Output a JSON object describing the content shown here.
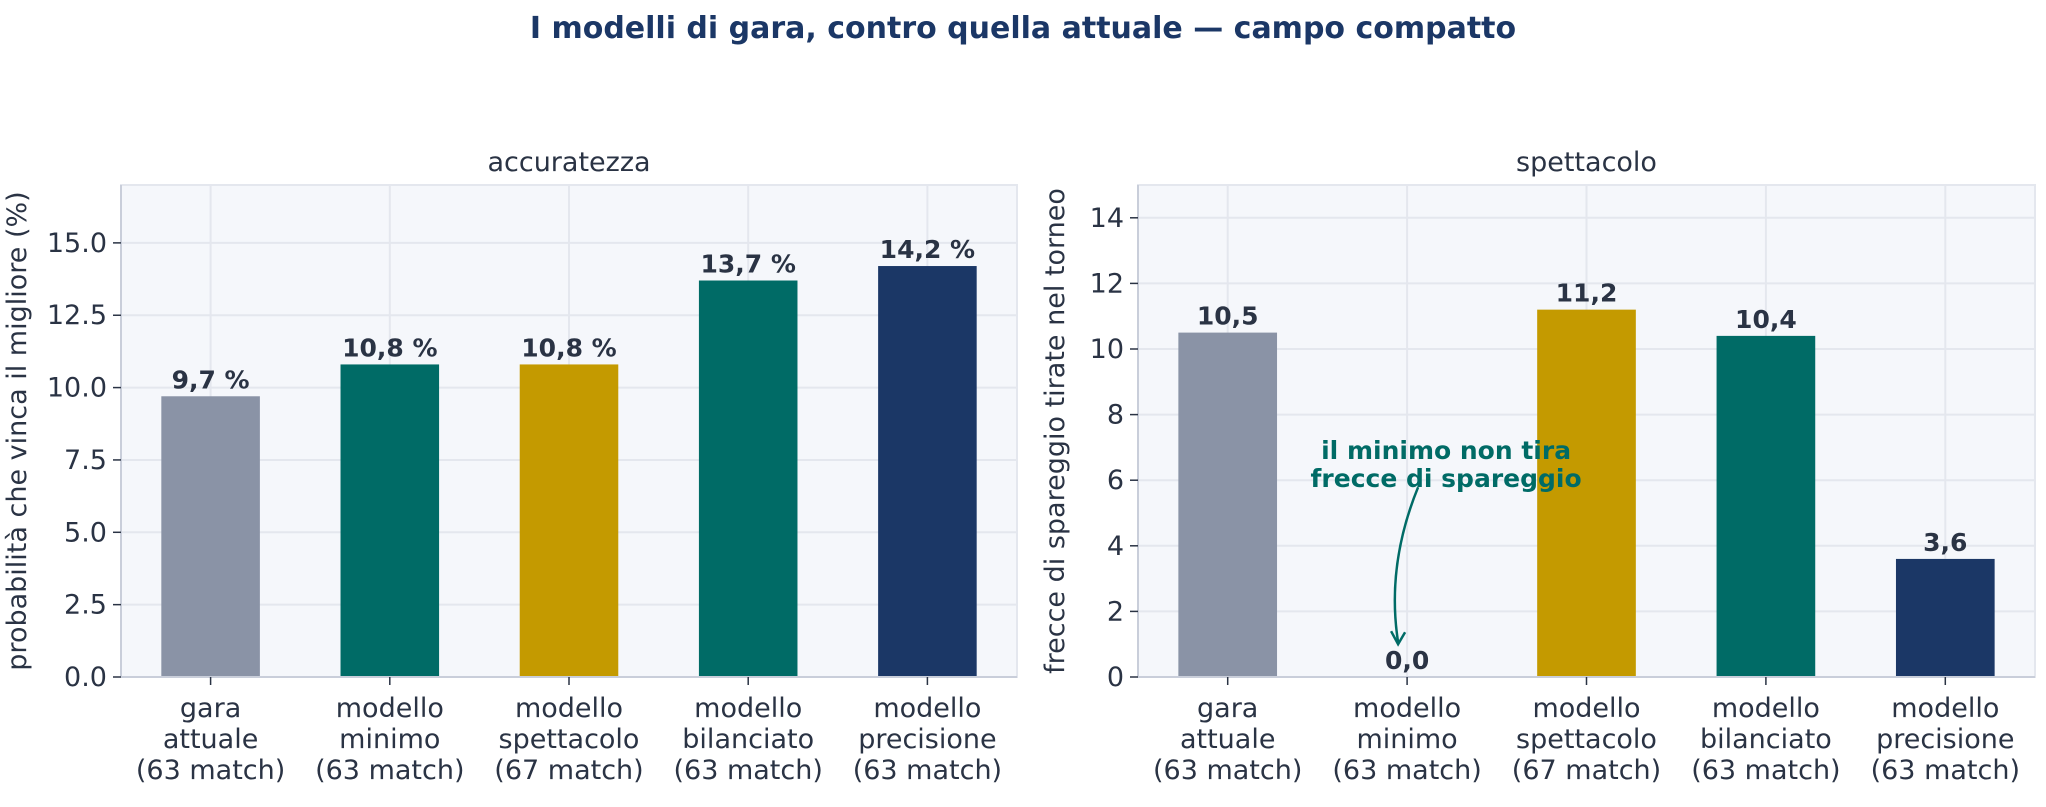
{
  "figure_title": "I modelli di gara, contro quella attuale — campo compatto",
  "colors": {
    "title": "#1b3766",
    "text": "#2a3344",
    "plot_bg": "#f5f7fb",
    "grid": "#e4e7ee",
    "annotation": "#006b66"
  },
  "chart_data": [
    {
      "type": "bar",
      "title": "accuratezza",
      "xlabel": "",
      "ylabel": "probabilità che vinca il migliore (%)",
      "categories": [
        [
          "gara",
          "attuale",
          "(63 match)"
        ],
        [
          "modello",
          "minimo",
          "(63 match)"
        ],
        [
          "modello",
          "spettacolo",
          "(67 match)"
        ],
        [
          "modello",
          "bilanciato",
          "(63 match)"
        ],
        [
          "modello",
          "precisione",
          "(63 match)"
        ]
      ],
      "values": [
        9.7,
        10.8,
        10.8,
        13.7,
        14.2
      ],
      "data_labels": [
        "9,7 %",
        "10,8 %",
        "10,8 %",
        "13,7 %",
        "14,2 %"
      ],
      "bar_colors": [
        "#8a93a6",
        "#006b66",
        "#c49a00",
        "#006b66",
        "#1b3766"
      ],
      "ylim": [
        0,
        17
      ],
      "yticks": [
        0,
        2.5,
        5,
        7.5,
        10,
        12.5,
        15
      ],
      "ytick_labels": [
        "0.0",
        "2.5",
        "5.0",
        "7.5",
        "10.0",
        "12.5",
        "15.0"
      ],
      "grid": true
    },
    {
      "type": "bar",
      "title": "spettacolo",
      "xlabel": "",
      "ylabel": "frecce di spareggio tirate nel torneo",
      "categories": [
        [
          "gara",
          "attuale",
          "(63 match)"
        ],
        [
          "modello",
          "minimo",
          "(63 match)"
        ],
        [
          "modello",
          "spettacolo",
          "(67 match)"
        ],
        [
          "modello",
          "bilanciato",
          "(63 match)"
        ],
        [
          "modello",
          "precisione",
          "(63 match)"
        ]
      ],
      "values": [
        10.5,
        0.0,
        11.2,
        10.4,
        3.6
      ],
      "data_labels": [
        "10,5",
        "0,0",
        "11,2",
        "10,4",
        "3,6"
      ],
      "bar_colors": [
        "#8a93a6",
        "#006b66",
        "#c49a00",
        "#006b66",
        "#1b3766"
      ],
      "ylim": [
        0,
        15
      ],
      "yticks": [
        0,
        2,
        4,
        6,
        8,
        10,
        12,
        14
      ],
      "ytick_labels": [
        "0",
        "2",
        "4",
        "6",
        "8",
        "10",
        "12",
        "14"
      ],
      "grid": true,
      "annotation": {
        "lines": [
          "il minimo non tira",
          "frecce di spareggio"
        ],
        "target_category_index": 1,
        "target_value": 1.0,
        "text_value": 6.0
      }
    }
  ]
}
